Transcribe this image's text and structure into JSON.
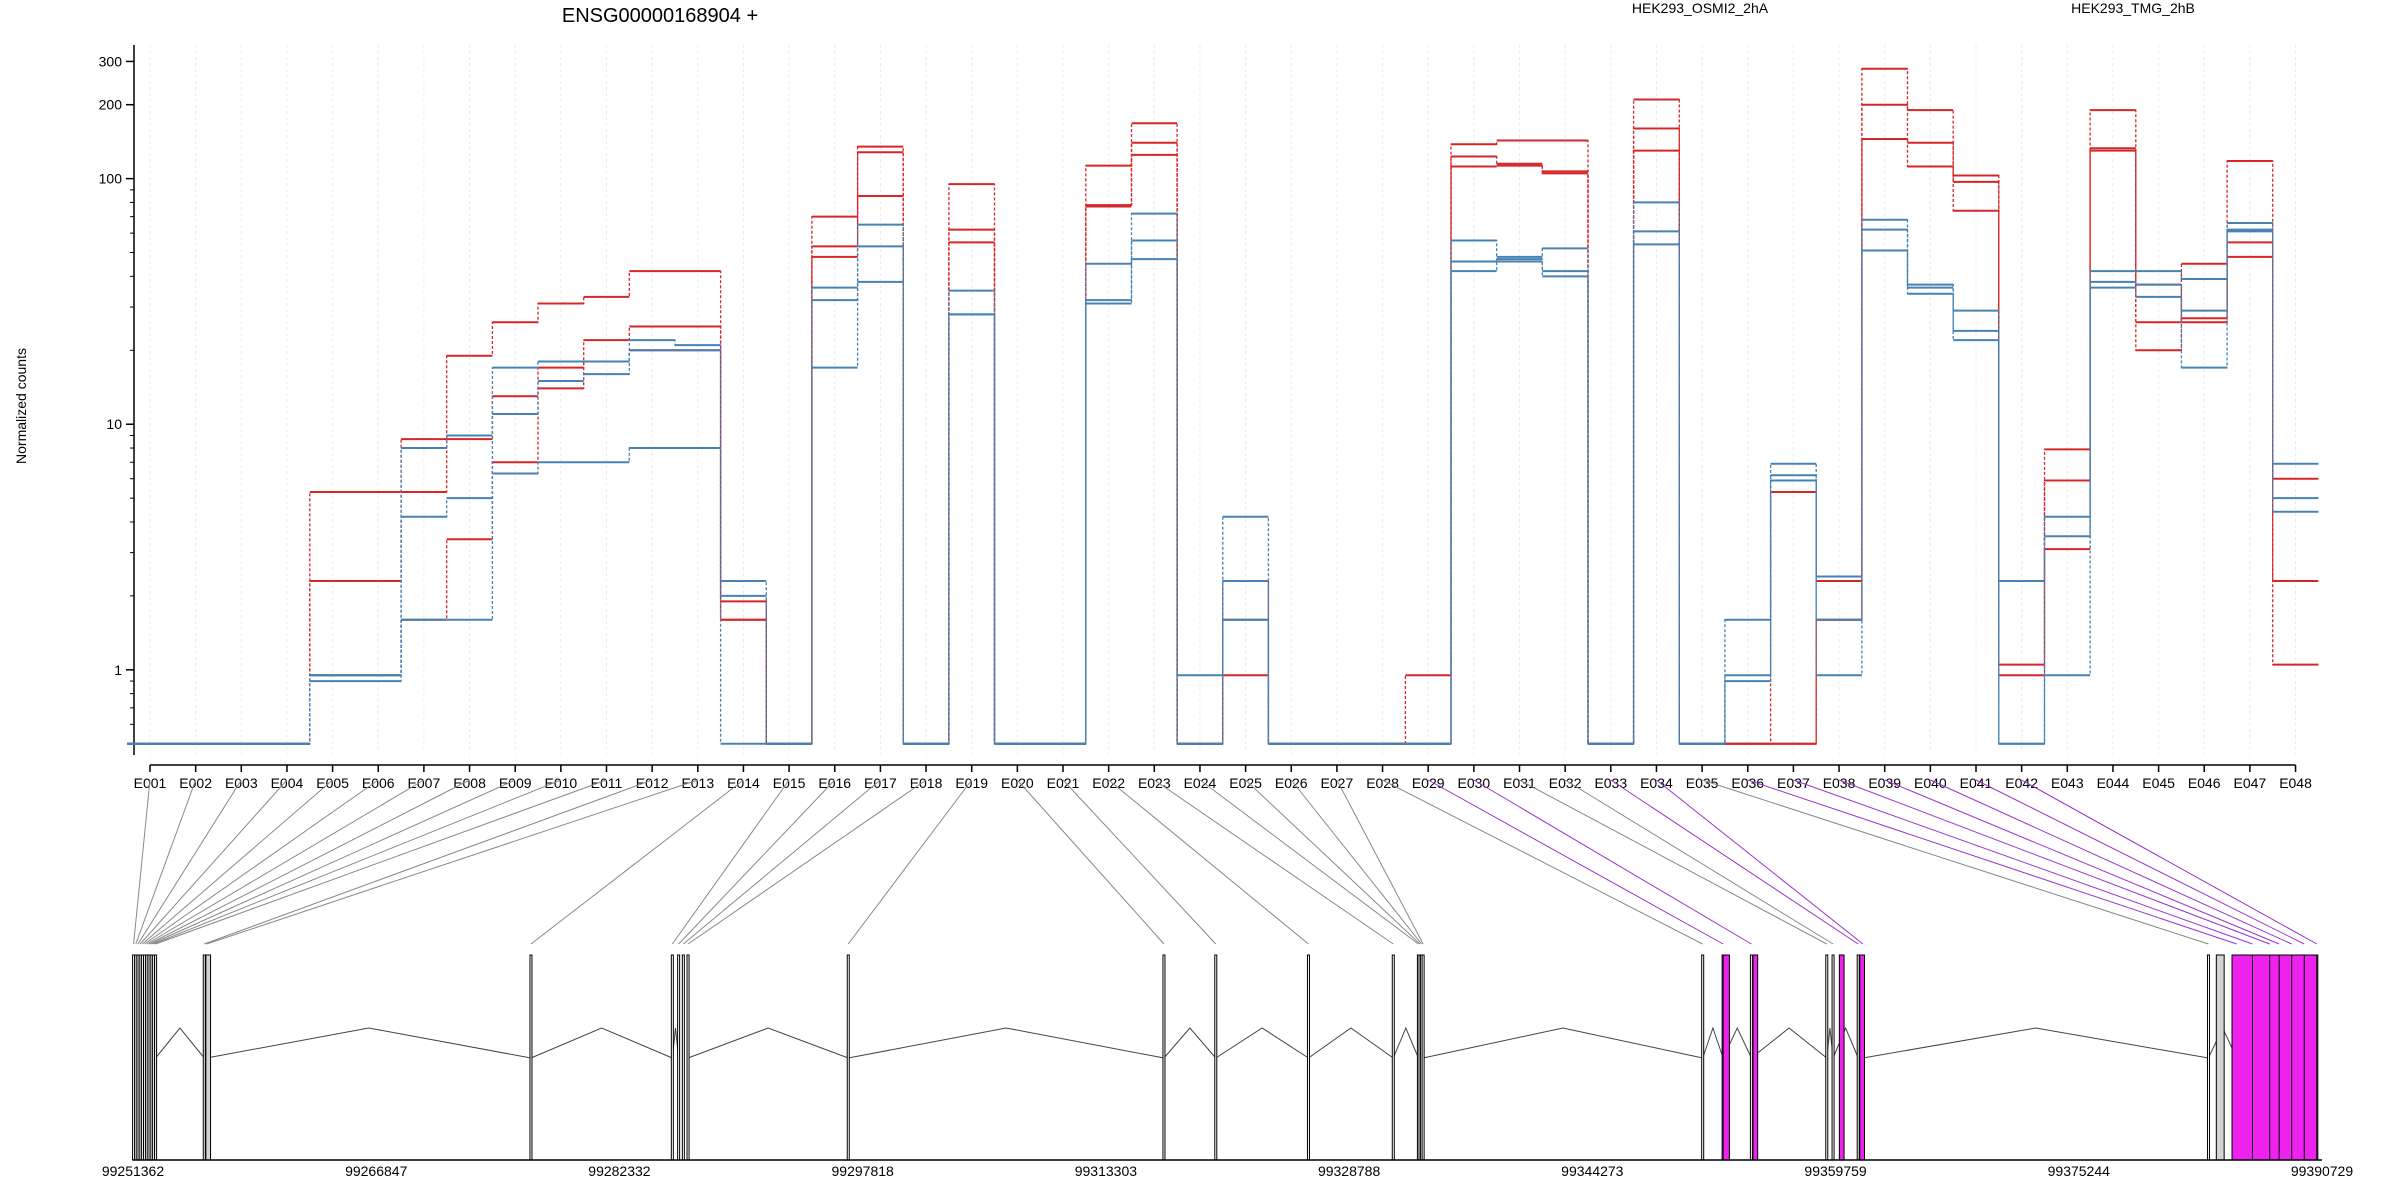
{
  "chart_data": {
    "type": "line",
    "title": "ENSG00000168904 +",
    "ylabel": "Normalized counts",
    "ylim": [
      0.45,
      350
    ],
    "yscale": "log",
    "yticks": [
      "1",
      "10",
      "100",
      "200",
      "300"
    ],
    "legend_placement": "top",
    "categories": [
      "E001",
      "E002",
      "E003",
      "E004",
      "E005",
      "E006",
      "E007",
      "E008",
      "E009",
      "E010",
      "E011",
      "E012",
      "E013",
      "E014",
      "E015",
      "E016",
      "E017",
      "E018",
      "E019",
      "E020",
      "E021",
      "E022",
      "E023",
      "E024",
      "E025",
      "E026",
      "E027",
      "E028",
      "E029",
      "E030",
      "E031",
      "E032",
      "E033",
      "E034",
      "E035",
      "E036",
      "E037",
      "E038",
      "E039",
      "E040",
      "E041",
      "E042",
      "E043",
      "E044",
      "E045",
      "E046",
      "E047",
      "E048"
    ],
    "series": [
      {
        "name": "HEK293_OSMI2_2hA",
        "color": "#d62728",
        "values": [
          0.5,
          0.5,
          0.5,
          0.5,
          5.3,
          5.3,
          8.7,
          19,
          26,
          31,
          33,
          42,
          42,
          1.6,
          0.5,
          70,
          135,
          0.5,
          95,
          0.5,
          0.5,
          113,
          168,
          0.5,
          0.95,
          0.5,
          0.5,
          0.5,
          0.95,
          138,
          143,
          143,
          0.5,
          210,
          0.5,
          0.5,
          0.5,
          1.6,
          280,
          190,
          103,
          1.05,
          7.9,
          190,
          20,
          45,
          118,
          6
        ]
      },
      {
        "name": "HEK293_OSMI2_2hA",
        "color": "#d62728",
        "values": [
          0.5,
          0.5,
          0.5,
          0.5,
          2.3,
          2.3,
          5.3,
          8.7,
          13,
          17,
          22,
          25,
          25,
          1.9,
          0.5,
          53,
          85,
          0.5,
          62,
          0.5,
          0.5,
          78,
          140,
          0.5,
          1.6,
          0.5,
          0.5,
          0.5,
          0.5,
          123,
          115,
          107,
          0.5,
          160,
          0.5,
          0.5,
          5.3,
          2.3,
          200,
          140,
          97,
          2.3,
          5.9,
          133,
          26,
          27,
          55,
          2.3
        ]
      },
      {
        "name": "HEK293_OSMI2_2hA",
        "color": "#d62728",
        "values": [
          0.5,
          0.5,
          0.5,
          0.5,
          0.95,
          0.95,
          1.6,
          3.4,
          7,
          14,
          18,
          20,
          20,
          1.6,
          0.5,
          48,
          128,
          0.5,
          55,
          0.5,
          0.5,
          77,
          125,
          0.5,
          2.3,
          0.5,
          0.5,
          0.5,
          0.5,
          112,
          113,
          105,
          0.5,
          130,
          0.5,
          0.5,
          0.5,
          1.6,
          145,
          112,
          74,
          0.95,
          3.1,
          130,
          37,
          26,
          48,
          1.05
        ]
      },
      {
        "name": "HEK293_TMG_2hB",
        "color": "#4682b4",
        "values": [
          0.5,
          0.5,
          0.5,
          0.5,
          0.95,
          0.95,
          8,
          9,
          17,
          18,
          18,
          22,
          21,
          2.3,
          0.5,
          36,
          65,
          0.5,
          35,
          0.5,
          0.5,
          45,
          72,
          0.95,
          4.2,
          0.5,
          0.5,
          0.5,
          0.5,
          56,
          48,
          52,
          0.5,
          80,
          0.5,
          1.6,
          6.9,
          2.4,
          68,
          37,
          29,
          2.3,
          4.2,
          42,
          42,
          39,
          66,
          6.9
        ]
      },
      {
        "name": "HEK293_TMG_2hB",
        "color": "#4682b4",
        "values": [
          0.5,
          0.5,
          0.5,
          0.5,
          0.95,
          0.95,
          4.2,
          5,
          11,
          15,
          16,
          20,
          20,
          2,
          0.5,
          32,
          53,
          0.5,
          28,
          0.5,
          0.5,
          32,
          56,
          0.5,
          2.3,
          0.5,
          0.5,
          0.5,
          0.5,
          46,
          47,
          42,
          0.5,
          61,
          0.5,
          0.95,
          6.2,
          1.6,
          62,
          36,
          24,
          0.5,
          3.5,
          38,
          37,
          29,
          62,
          5
        ]
      },
      {
        "name": "HEK293_TMG_2hB",
        "color": "#4682b4",
        "values": [
          0.5,
          0.5,
          0.5,
          0.5,
          0.9,
          0.9,
          1.6,
          1.6,
          6.3,
          7,
          7,
          8,
          8,
          0.5,
          0.5,
          17,
          38,
          0.5,
          28,
          0.5,
          0.5,
          31,
          47,
          0.5,
          1.6,
          0.5,
          0.5,
          0.5,
          0.5,
          42,
          46,
          40,
          0.5,
          54,
          0.5,
          0.9,
          5.9,
          0.95,
          51,
          34,
          22,
          0.5,
          0.95,
          36,
          33,
          17,
          61,
          4.4
        ]
      }
    ],
    "genomic_ticks": [
      "99251362",
      "99266847",
      "99282332",
      "99297818",
      "99313303",
      "99328788",
      "99344273",
      "99359759",
      "99375244",
      "99390729"
    ],
    "gene_model": {
      "start": 99251362,
      "end": 99390729,
      "exon_positions": [
        99251400,
        99251540,
        99251680,
        99251820,
        99251960,
        99252100,
        99252240,
        99252380,
        99252520,
        99252660,
        99252800,
        99255900,
        99256050,
        99276700,
        99285700,
        99286100,
        99286400,
        99286700,
        99296900,
        99317000,
        99320300,
        99326200,
        99331600,
        99333200,
        99333300,
        99333400,
        99333500,
        99351300,
        99352600,
        99354400,
        99359200,
        99359600,
        99361200,
        99361500,
        99383500,
        99385300,
        99386300,
        99387400,
        99388000,
        99388800,
        99389600,
        99390400
      ],
      "exon_blocks": [
        {
          "start": 99256000,
          "end": 99256300,
          "highlight": false
        },
        {
          "start": 99352600,
          "end": 99353000,
          "highlight": true
        },
        {
          "start": 99354500,
          "end": 99354800,
          "highlight": true
        },
        {
          "start": 99360000,
          "end": 99360300,
          "highlight": true
        },
        {
          "start": 99361300,
          "end": 99361600,
          "highlight": true
        },
        {
          "start": 99384000,
          "end": 99384500,
          "highlight": false
        },
        {
          "start": 99385000,
          "end": 99390400,
          "highlight": true
        }
      ]
    }
  },
  "colors": {
    "osmi": "#d62728",
    "tmg": "#4682b4",
    "highlight": "#ee22ee",
    "highlight_connector": "#9933cc",
    "connector": "#888888",
    "exon_plain": "#d3d3d3"
  }
}
